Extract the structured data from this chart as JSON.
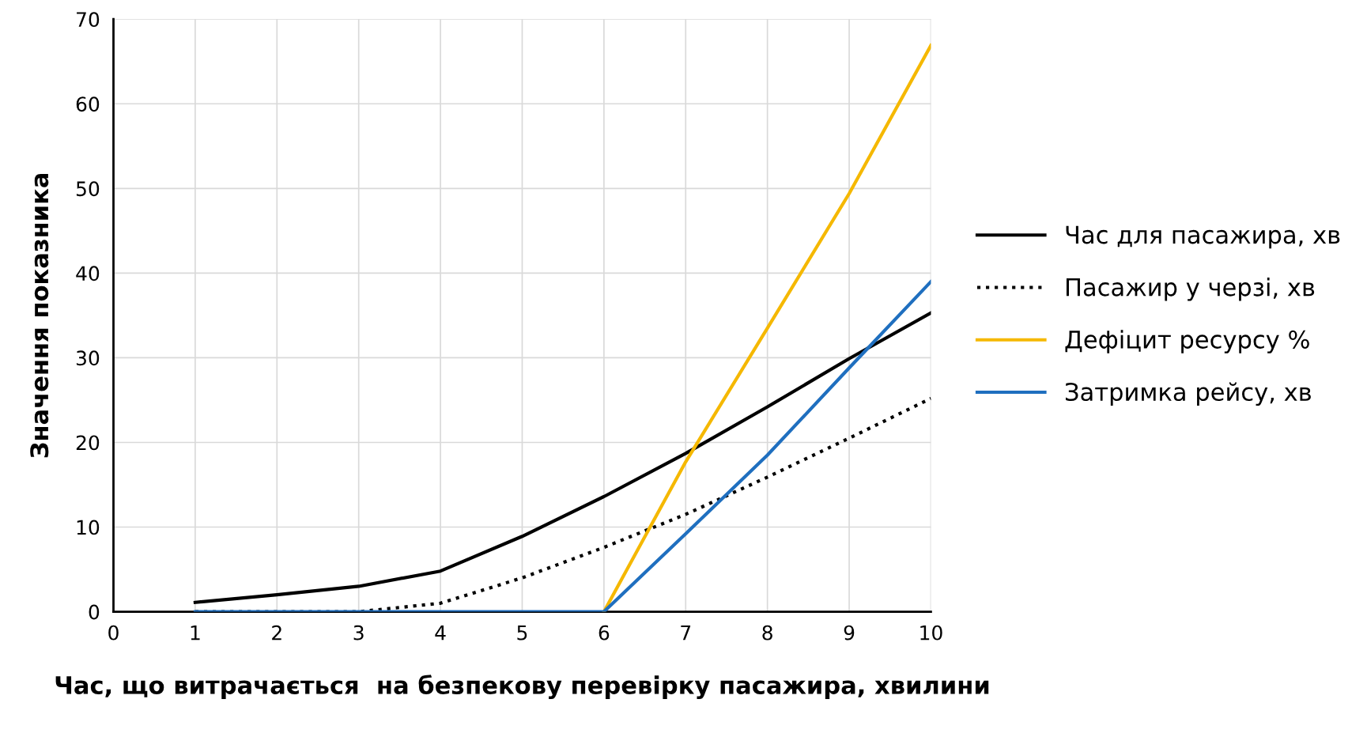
{
  "chart_data": {
    "type": "line",
    "xlabel": "Час, що витрачається  на безпекову перевірку пасажира, хвилини",
    "ylabel": "Значення показника",
    "x": [
      1,
      2,
      3,
      4,
      5,
      6,
      7,
      8,
      9,
      10
    ],
    "xlim": [
      0,
      10
    ],
    "xticks": [
      0,
      1,
      2,
      3,
      4,
      5,
      6,
      7,
      8,
      9,
      10
    ],
    "ylim": [
      0,
      70
    ],
    "yticks": [
      0,
      10,
      20,
      30,
      40,
      50,
      60,
      70
    ],
    "grid": true,
    "legend": "right",
    "marker": "none",
    "series": [
      {
        "name": "Час для пасажира, хв",
        "color": "#000000",
        "line_style": "solid",
        "values": [
          1.1,
          2,
          3,
          4.8,
          8.9,
          13.6,
          18.7,
          24.2,
          29.9,
          35.3
        ]
      },
      {
        "name": "Пасажир у черзі, хв",
        "color": "#000000",
        "line_style": "dotted",
        "values": [
          0,
          0,
          0,
          1,
          4,
          7.6,
          11.5,
          15.9,
          20.5,
          25.2
        ]
      },
      {
        "name": "Дефіцит ресурсу %",
        "color": "#f5b800",
        "line_style": "solid",
        "values": [
          null,
          null,
          null,
          null,
          null,
          0,
          17.7,
          33.5,
          49.4,
          66.9
        ]
      },
      {
        "name": "Затримка рейсу, хв",
        "color": "#1f6fbf",
        "line_style": "solid",
        "values": [
          0,
          0,
          0,
          0,
          0,
          0,
          9.2,
          18.5,
          28.8,
          39
        ]
      }
    ]
  }
}
